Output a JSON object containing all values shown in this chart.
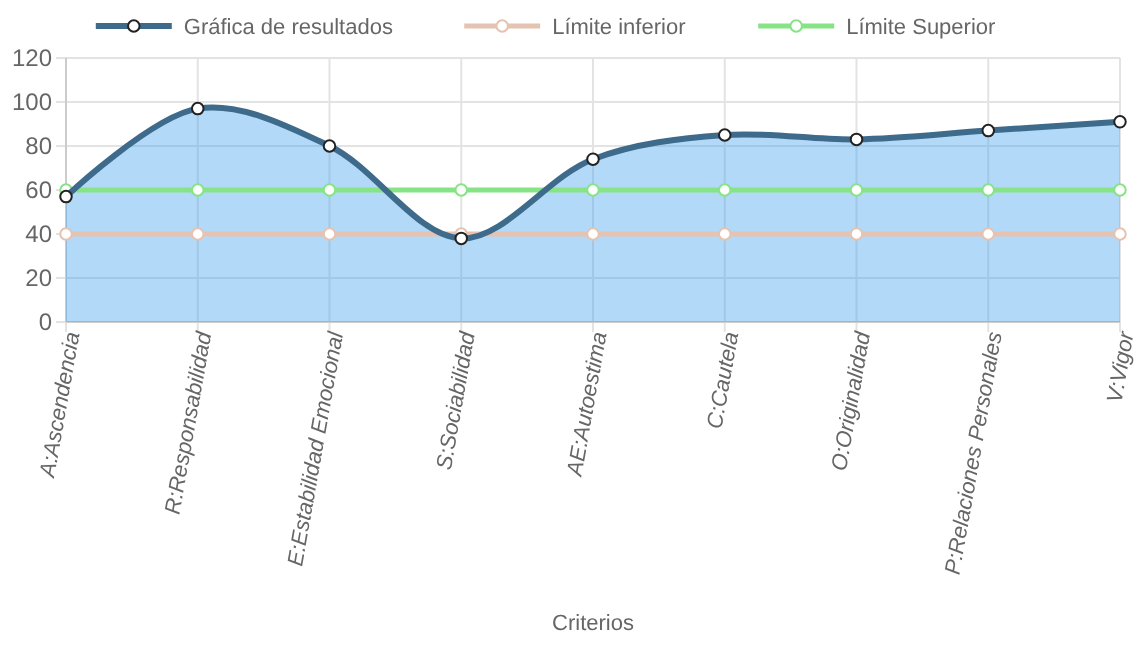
{
  "chart_data": {
    "type": "line",
    "xlabel": "Criterios",
    "categories": [
      "A:Ascendencia",
      "R:Responsabilidad",
      "E:Estabilidad Emocional",
      "S:Sociabilidad",
      "AE:Autoestima",
      "C:Cautela",
      "O:Originalidad",
      "P:Relaciones Personales",
      "V:Vigor"
    ],
    "series": [
      {
        "name": "Gráfica de resultados",
        "type": "area",
        "color": "#3e6a8c",
        "values": [
          57,
          97,
          80,
          38,
          74,
          85,
          83,
          87,
          91
        ]
      },
      {
        "name": "Límite inferior",
        "color": "#e6c3b1",
        "values": [
          40,
          40,
          40,
          40,
          40,
          40,
          40,
          40,
          40
        ]
      },
      {
        "name": "Límite Superior",
        "color": "#86e486",
        "values": [
          60,
          60,
          60,
          60,
          60,
          60,
          60,
          60,
          60
        ]
      }
    ],
    "ylim": [
      0,
      120
    ],
    "yticks": [
      0,
      20,
      40,
      60,
      80,
      100,
      120
    ],
    "grid": true,
    "legend": "top",
    "marker": "circle",
    "line_style": "solid"
  }
}
